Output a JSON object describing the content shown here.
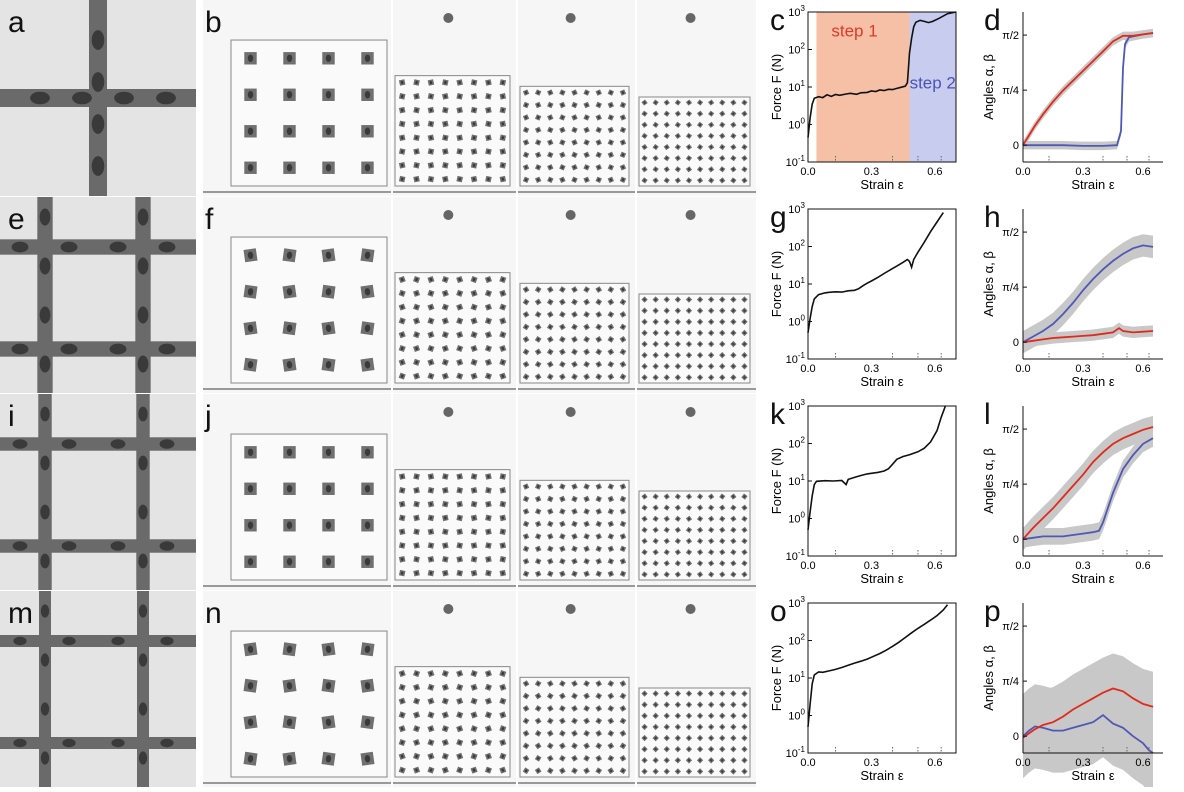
{
  "rows": [
    {
      "labels": {
        "photo": "a",
        "seq": "b",
        "force": "c",
        "angles": "d"
      },
      "beam_ratio": 1.0,
      "force_curve": [
        [
          0.0,
          0.45
        ],
        [
          0.01,
          1.5
        ],
        [
          0.02,
          3.5
        ],
        [
          0.03,
          5.0
        ],
        [
          0.05,
          5.5
        ],
        [
          0.07,
          5.2
        ],
        [
          0.09,
          6.2
        ],
        [
          0.11,
          5.6
        ],
        [
          0.13,
          6.3
        ],
        [
          0.15,
          6.0
        ],
        [
          0.18,
          6.5
        ],
        [
          0.2,
          6.8
        ],
        [
          0.23,
          6.4
        ],
        [
          0.25,
          7.0
        ],
        [
          0.28,
          7.2
        ],
        [
          0.3,
          7.8
        ],
        [
          0.32,
          7.6
        ],
        [
          0.34,
          8.3
        ],
        [
          0.36,
          8.0
        ],
        [
          0.38,
          8.7
        ],
        [
          0.4,
          8.5
        ],
        [
          0.42,
          9.2
        ],
        [
          0.44,
          9.8
        ],
        [
          0.46,
          10.5
        ],
        [
          0.47,
          13
        ],
        [
          0.475,
          30
        ],
        [
          0.48,
          80
        ],
        [
          0.49,
          200
        ],
        [
          0.5,
          400
        ],
        [
          0.51,
          530
        ],
        [
          0.53,
          600
        ],
        [
          0.55,
          560
        ],
        [
          0.57,
          520
        ],
        [
          0.59,
          560
        ],
        [
          0.62,
          680
        ],
        [
          0.66,
          900
        ],
        [
          0.7,
          1000
        ]
      ],
      "force_annotations": [
        {
          "text": "step 1",
          "color": "#e03a2a",
          "x": 0.22,
          "y": 220
        },
        {
          "text": "step 2",
          "color": "#4a52b8",
          "x": 0.59,
          "y": 9
        }
      ],
      "shaded_regions": [
        {
          "from": 0.04,
          "to": 0.48,
          "color": "#f5c0a5"
        },
        {
          "from": 0.48,
          "to": 0.7,
          "color": "#c8ccef"
        }
      ],
      "angle_red": [
        [
          0.0,
          0.0
        ],
        [
          0.03,
          0.07
        ],
        [
          0.06,
          0.14
        ],
        [
          0.1,
          0.22
        ],
        [
          0.15,
          0.31
        ],
        [
          0.2,
          0.39
        ],
        [
          0.25,
          0.46
        ],
        [
          0.3,
          0.53
        ],
        [
          0.35,
          0.6
        ],
        [
          0.4,
          0.67
        ],
        [
          0.45,
          0.74
        ],
        [
          0.5,
          0.78
        ],
        [
          0.55,
          0.78
        ],
        [
          0.6,
          0.79
        ],
        [
          0.65,
          0.8
        ]
      ],
      "angle_red_band": 0.03,
      "angle_blue": [
        [
          0.0,
          0.0
        ],
        [
          0.1,
          0.0
        ],
        [
          0.2,
          0.0
        ],
        [
          0.3,
          -0.005
        ],
        [
          0.4,
          -0.005
        ],
        [
          0.47,
          0.0
        ],
        [
          0.49,
          0.1
        ],
        [
          0.5,
          0.55
        ],
        [
          0.51,
          0.72
        ],
        [
          0.53,
          0.77
        ],
        [
          0.6,
          0.79
        ],
        [
          0.65,
          0.8
        ]
      ],
      "angle_blue_band": 0.03
    },
    {
      "labels": {
        "photo": "e",
        "seq": "f",
        "force": "g",
        "angles": "h"
      },
      "beam_ratio": 0.78,
      "force_curve": [
        [
          0.0,
          0.5
        ],
        [
          0.01,
          1.2
        ],
        [
          0.02,
          2.5
        ],
        [
          0.03,
          4.0
        ],
        [
          0.05,
          5.2
        ],
        [
          0.08,
          5.8
        ],
        [
          0.1,
          6.0
        ],
        [
          0.13,
          6.2
        ],
        [
          0.16,
          6.1
        ],
        [
          0.19,
          6.6
        ],
        [
          0.22,
          6.8
        ],
        [
          0.24,
          7.5
        ],
        [
          0.26,
          9.0
        ],
        [
          0.28,
          10.5
        ],
        [
          0.3,
          12
        ],
        [
          0.33,
          15
        ],
        [
          0.36,
          19
        ],
        [
          0.39,
          24
        ],
        [
          0.42,
          30
        ],
        [
          0.45,
          38
        ],
        [
          0.47,
          45
        ],
        [
          0.48,
          40
        ],
        [
          0.49,
          28
        ],
        [
          0.5,
          45
        ],
        [
          0.52,
          70
        ],
        [
          0.55,
          130
        ],
        [
          0.58,
          250
        ],
        [
          0.61,
          450
        ],
        [
          0.64,
          800
        ]
      ],
      "force_annotations": [],
      "shaded_regions": [],
      "angle_red": [
        [
          0.0,
          0.0
        ],
        [
          0.05,
          0.01
        ],
        [
          0.1,
          0.02
        ],
        [
          0.15,
          0.03
        ],
        [
          0.2,
          0.035
        ],
        [
          0.25,
          0.04
        ],
        [
          0.3,
          0.045
        ],
        [
          0.35,
          0.05
        ],
        [
          0.4,
          0.06
        ],
        [
          0.45,
          0.07
        ],
        [
          0.48,
          0.1
        ],
        [
          0.5,
          0.08
        ],
        [
          0.55,
          0.07
        ],
        [
          0.6,
          0.075
        ],
        [
          0.65,
          0.08
        ]
      ],
      "angle_red_band": 0.04,
      "angle_blue": [
        [
          0.0,
          0.0
        ],
        [
          0.05,
          0.04
        ],
        [
          0.1,
          0.08
        ],
        [
          0.15,
          0.13
        ],
        [
          0.2,
          0.2
        ],
        [
          0.25,
          0.28
        ],
        [
          0.3,
          0.37
        ],
        [
          0.35,
          0.45
        ],
        [
          0.4,
          0.52
        ],
        [
          0.45,
          0.58
        ],
        [
          0.5,
          0.63
        ],
        [
          0.55,
          0.67
        ],
        [
          0.6,
          0.69
        ],
        [
          0.65,
          0.68
        ]
      ],
      "angle_blue_band": 0.08
    },
    {
      "labels": {
        "photo": "i",
        "seq": "j",
        "force": "k",
        "angles": "l"
      },
      "beam_ratio": 0.62,
      "force_curve": [
        [
          0.0,
          0.5
        ],
        [
          0.01,
          1.5
        ],
        [
          0.02,
          4.0
        ],
        [
          0.03,
          8.0
        ],
        [
          0.04,
          9.8
        ],
        [
          0.08,
          10.2
        ],
        [
          0.12,
          10.0
        ],
        [
          0.16,
          10.3
        ],
        [
          0.18,
          8.0
        ],
        [
          0.19,
          11
        ],
        [
          0.22,
          12.5
        ],
        [
          0.25,
          14
        ],
        [
          0.28,
          15.5
        ],
        [
          0.3,
          16
        ],
        [
          0.33,
          17
        ],
        [
          0.36,
          18.5
        ],
        [
          0.38,
          21
        ],
        [
          0.4,
          28
        ],
        [
          0.42,
          38
        ],
        [
          0.45,
          45
        ],
        [
          0.48,
          50
        ],
        [
          0.5,
          55
        ],
        [
          0.52,
          60
        ],
        [
          0.55,
          75
        ],
        [
          0.58,
          110
        ],
        [
          0.61,
          220
        ],
        [
          0.63,
          500
        ],
        [
          0.65,
          1000
        ]
      ],
      "force_annotations": [],
      "shaded_regions": [],
      "angle_red": [
        [
          0.0,
          0.0
        ],
        [
          0.05,
          0.08
        ],
        [
          0.1,
          0.15
        ],
        [
          0.15,
          0.22
        ],
        [
          0.2,
          0.3
        ],
        [
          0.25,
          0.38
        ],
        [
          0.3,
          0.46
        ],
        [
          0.35,
          0.55
        ],
        [
          0.4,
          0.62
        ],
        [
          0.45,
          0.68
        ],
        [
          0.5,
          0.72
        ],
        [
          0.55,
          0.75
        ],
        [
          0.6,
          0.78
        ],
        [
          0.65,
          0.8
        ]
      ],
      "angle_red_band": 0.08,
      "angle_blue": [
        [
          0.0,
          0.0
        ],
        [
          0.05,
          0.01
        ],
        [
          0.1,
          0.02
        ],
        [
          0.15,
          0.02
        ],
        [
          0.2,
          0.02
        ],
        [
          0.25,
          0.03
        ],
        [
          0.3,
          0.04
        ],
        [
          0.35,
          0.05
        ],
        [
          0.38,
          0.06
        ],
        [
          0.4,
          0.12
        ],
        [
          0.45,
          0.33
        ],
        [
          0.5,
          0.5
        ],
        [
          0.55,
          0.6
        ],
        [
          0.6,
          0.68
        ],
        [
          0.65,
          0.72
        ]
      ],
      "angle_blue_band": 0.06
    },
    {
      "labels": {
        "photo": "m",
        "seq": "n",
        "force": "o",
        "angles": "p"
      },
      "beam_ratio": 0.5,
      "force_curve": [
        [
          0.0,
          0.5
        ],
        [
          0.01,
          2.0
        ],
        [
          0.02,
          7.0
        ],
        [
          0.03,
          12
        ],
        [
          0.05,
          14.5
        ],
        [
          0.07,
          14.2
        ],
        [
          0.1,
          15.5
        ],
        [
          0.13,
          17
        ],
        [
          0.16,
          19
        ],
        [
          0.19,
          22
        ],
        [
          0.22,
          25
        ],
        [
          0.25,
          28
        ],
        [
          0.28,
          32
        ],
        [
          0.31,
          38
        ],
        [
          0.34,
          45
        ],
        [
          0.37,
          55
        ],
        [
          0.4,
          70
        ],
        [
          0.43,
          90
        ],
        [
          0.46,
          120
        ],
        [
          0.49,
          160
        ],
        [
          0.52,
          210
        ],
        [
          0.55,
          270
        ],
        [
          0.58,
          350
        ],
        [
          0.61,
          460
        ],
        [
          0.64,
          650
        ],
        [
          0.66,
          900
        ]
      ],
      "force_annotations": [],
      "shaded_regions": [],
      "angle_red": [
        [
          0.0,
          -0.01
        ],
        [
          0.03,
          0.02
        ],
        [
          0.06,
          0.05
        ],
        [
          0.1,
          0.08
        ],
        [
          0.15,
          0.1
        ],
        [
          0.2,
          0.14
        ],
        [
          0.25,
          0.19
        ],
        [
          0.3,
          0.23
        ],
        [
          0.35,
          0.27
        ],
        [
          0.4,
          0.31
        ],
        [
          0.45,
          0.34
        ],
        [
          0.5,
          0.32
        ],
        [
          0.55,
          0.27
        ],
        [
          0.6,
          0.23
        ],
        [
          0.65,
          0.21
        ]
      ],
      "angle_red_band": 0.25,
      "angle_blue": [
        [
          0.0,
          0.0
        ],
        [
          0.03,
          0.04
        ],
        [
          0.06,
          0.07
        ],
        [
          0.1,
          0.06
        ],
        [
          0.15,
          0.04
        ],
        [
          0.2,
          0.04
        ],
        [
          0.25,
          0.06
        ],
        [
          0.3,
          0.08
        ],
        [
          0.35,
          0.1
        ],
        [
          0.4,
          0.15
        ],
        [
          0.45,
          0.09
        ],
        [
          0.5,
          0.06
        ],
        [
          0.55,
          0.0
        ],
        [
          0.6,
          -0.05
        ],
        [
          0.63,
          -0.1
        ],
        [
          0.65,
          -0.12
        ]
      ],
      "angle_blue_band": 0.3
    }
  ],
  "force_axis": {
    "ylabel": "Force  F  (N)",
    "xlabel": "Strain  ε",
    "x_ticks": [
      "0.0",
      "0.3",
      "0.6"
    ],
    "y_ticks_mantissa": "10",
    "y_ticks_exp": [
      "-1",
      "0",
      "1",
      "2",
      "3"
    ],
    "xlim": [
      0,
      0.7
    ],
    "ylim_log": [
      -1,
      3
    ]
  },
  "angle_axis": {
    "ylabel": "Angles  α, β",
    "xlabel": "Strain  ε",
    "x_ticks": [
      "0.0",
      "0.3",
      "0.6"
    ],
    "y_ticks": [
      "0",
      "π/4",
      "π/2"
    ],
    "xlim": [
      0,
      0.7
    ],
    "ylim": [
      -0.12,
      0.95
    ]
  },
  "marker_strains": [
    0.13,
    0.4,
    0.52,
    0.63
  ],
  "colors": {
    "red": "#e02a1a",
    "blue": "#5058b6",
    "band": "#c8c8c8",
    "rubber": "#6a6a6a",
    "rubber_dark": "#3a3a3a",
    "photo_bg": "#e4e4e4"
  }
}
